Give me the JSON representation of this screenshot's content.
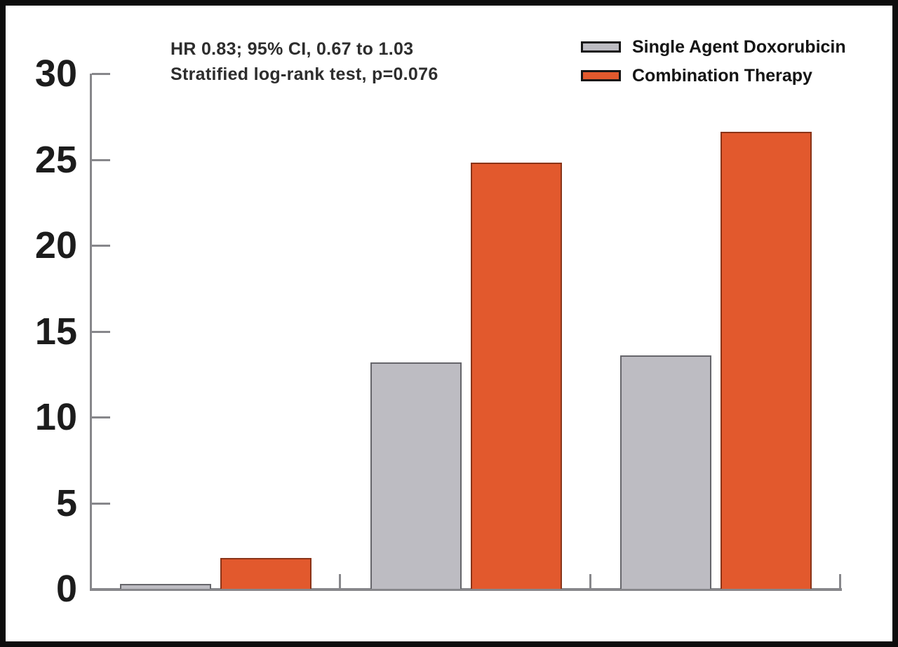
{
  "figure": {
    "background": "#ffffff",
    "frame_color": "#0d0d0d"
  },
  "annotation": {
    "line1": "HR 0.83; 95% CI, 0.67 to 1.03",
    "line2": "Stratified log-rank test, p=0.076"
  },
  "legend": {
    "position": "top-right",
    "items": [
      {
        "label": "Single Agent Doxorubicin",
        "swatch_fill": "#bdbcc2",
        "swatch_border": "#161616"
      },
      {
        "label": "Combination Therapy",
        "swatch_fill": "#e2592d",
        "swatch_border": "#161616"
      }
    ]
  },
  "chart_data": {
    "type": "bar",
    "title": "",
    "xlabel": "",
    "ylabel": "",
    "categories": [
      "",
      "",
      ""
    ],
    "series": [
      {
        "name": "Single Agent Doxorubicin",
        "fill": "#bdbcc2",
        "border": "#66666b",
        "values": [
          0.3,
          13.2,
          13.6
        ]
      },
      {
        "name": "Combination Therapy",
        "fill": "#e2592d",
        "border": "#8a3418",
        "values": [
          1.8,
          24.8,
          26.6
        ]
      }
    ],
    "ylim": [
      0,
      30
    ],
    "yticks": [
      0,
      5,
      10,
      15,
      20,
      25,
      30
    ],
    "grid": false,
    "legend_position": "top-right",
    "axis_color": "#87878b",
    "tick_label_color": "#1c1c1c"
  }
}
